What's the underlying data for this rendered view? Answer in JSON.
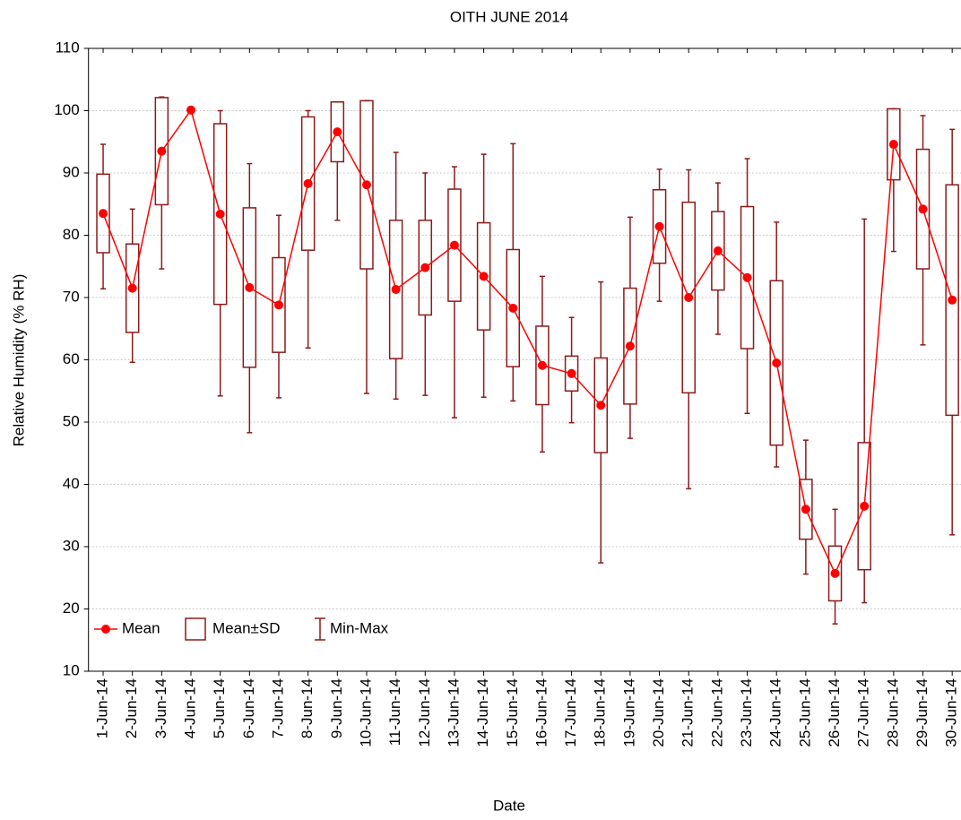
{
  "chart_data": {
    "type": "box",
    "title": "OITH JUNE 2014",
    "x_label": "Date",
    "y_label": "Relative Humidity (% RH)",
    "categories": [
      "1-Jun-14",
      "2-Jun-14",
      "3-Jun-14",
      "4-Jun-14",
      "5-Jun-14",
      "6-Jun-14",
      "7-Jun-14",
      "8-Jun-14",
      "9-Jun-14",
      "10-Jun-14",
      "11-Jun-14",
      "12-Jun-14",
      "13-Jun-14",
      "14-Jun-14",
      "15-Jun-14",
      "16-Jun-14",
      "17-Jun-14",
      "18-Jun-14",
      "19-Jun-14",
      "20-Jun-14",
      "21-Jun-14",
      "22-Jun-14",
      "23-Jun-14",
      "24-Jun-14",
      "25-Jun-14",
      "26-Jun-14",
      "27-Jun-14",
      "28-Jun-14",
      "29-Jun-14",
      "30-Jun-14"
    ],
    "mean": {
      "name": "Mean",
      "color": "#ff0000",
      "values": [
        83.5,
        71.5,
        93.5,
        100.1,
        83.4,
        71.6,
        68.8,
        88.3,
        96.6,
        88.1,
        71.3,
        74.8,
        78.4,
        73.4,
        68.3,
        59.1,
        57.8,
        52.7,
        62.2,
        81.4,
        70,
        77.5,
        73.2,
        59.5,
        36,
        25.7,
        36.5,
        94.6,
        84.2,
        69.6
      ]
    },
    "sd": {
      "name": "Mean±SD",
      "color": "#8b1a1a",
      "values": [
        6.3,
        7.1,
        8.6,
        0,
        14.5,
        12.8,
        7.6,
        10.7,
        4.8,
        13.5,
        11.1,
        7.6,
        9,
        8.6,
        9.4,
        6.3,
        2.8,
        7.6,
        9.3,
        5.9,
        15.3,
        6.3,
        11.4,
        13.2,
        4.8,
        4.4,
        10.2,
        5.7,
        9.6,
        18.5
      ]
    },
    "min_max": {
      "name": "Min-Max",
      "color": "#8b1a1a",
      "min": [
        71.4,
        59.6,
        74.6,
        100.1,
        54.2,
        48.3,
        53.9,
        61.9,
        82.4,
        54.6,
        53.7,
        54.3,
        50.7,
        54,
        53.4,
        45.2,
        49.9,
        27.4,
        47.4,
        69.4,
        39.3,
        64.1,
        51.4,
        42.8,
        25.6,
        17.6,
        21,
        77.4,
        62.4,
        31.9
      ],
      "max": [
        94.6,
        84.2,
        102.2,
        100.1,
        100,
        91.5,
        83.2,
        100,
        101.4,
        101.6,
        93.3,
        90,
        91,
        93,
        94.7,
        73.4,
        66.8,
        72.5,
        82.9,
        90.6,
        90.5,
        88.4,
        92.3,
        82.1,
        47.1,
        36,
        82.6,
        100.3,
        99.2,
        97
      ]
    },
    "ylim": [
      10,
      110
    ],
    "yticks": [
      10,
      20,
      30,
      40,
      50,
      60,
      70,
      80,
      90,
      100,
      110
    ],
    "grid": true,
    "legend": "lower left"
  }
}
